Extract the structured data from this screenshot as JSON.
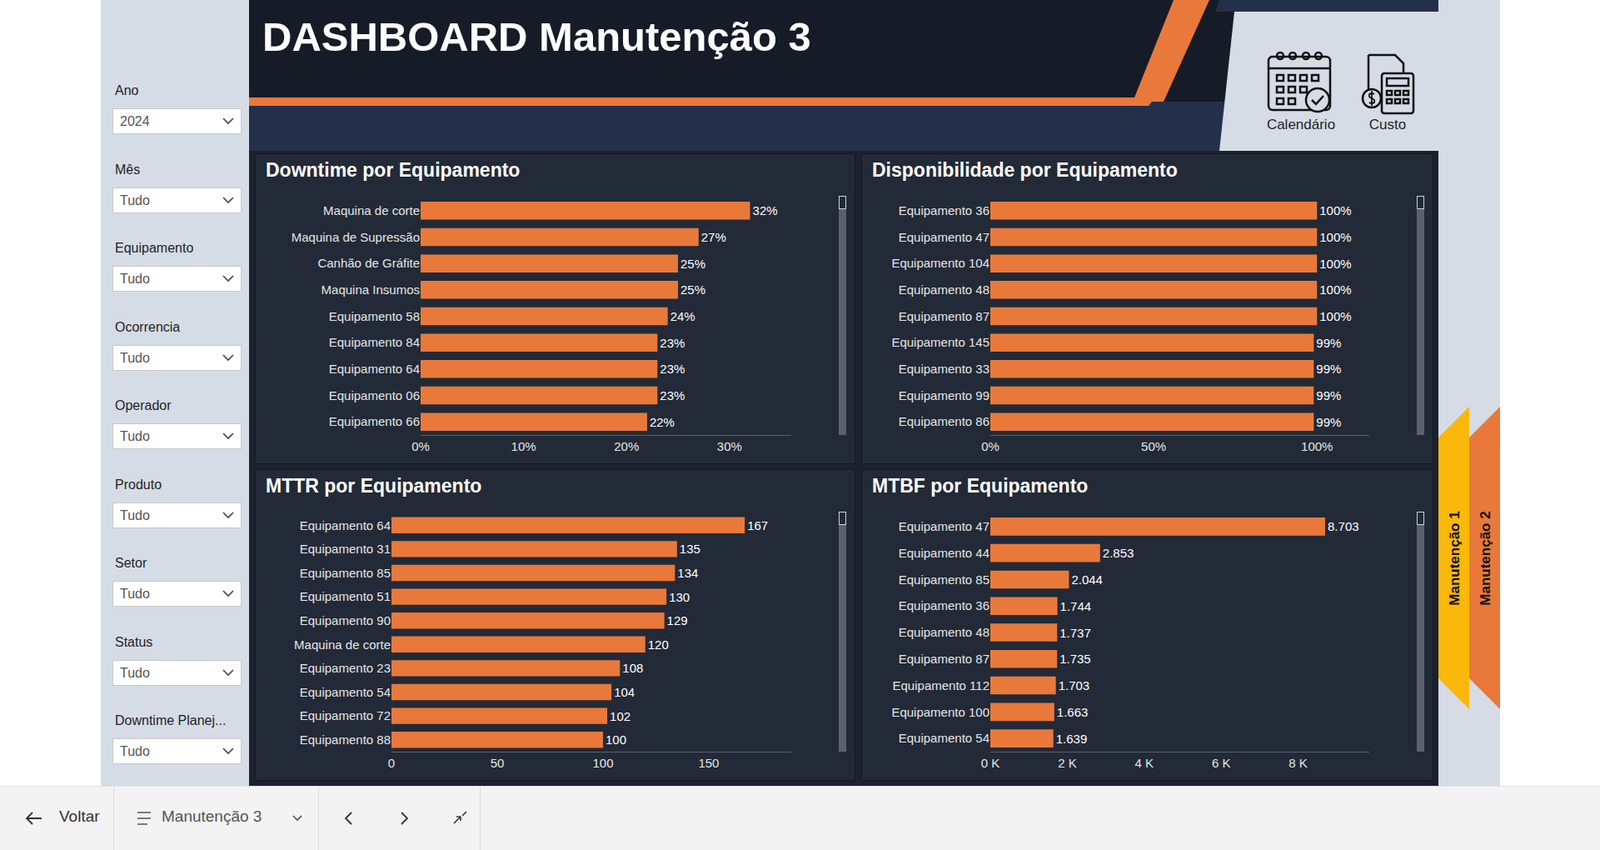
{
  "header": {
    "title": "DASHBOARD Manutenção 3"
  },
  "icons": [
    "Calendário",
    "Custo"
  ],
  "filters": [
    {
      "label": "Ano",
      "value": "2024"
    },
    {
      "label": "Mês",
      "value": "Tudo"
    },
    {
      "label": "Equipamento",
      "value": "Tudo"
    },
    {
      "label": "Ocorrencia",
      "value": "Tudo"
    },
    {
      "label": "Operador",
      "value": "Tudo"
    },
    {
      "label": "Produto",
      "value": "Tudo"
    },
    {
      "label": "Setor",
      "value": "Tudo"
    },
    {
      "label": "Status",
      "value": "Tudo"
    },
    {
      "label": "Downtime Planej...",
      "value": "Tudo"
    }
  ],
  "side_tabs": [
    "Manutenção 1",
    "Manutenção 2"
  ],
  "nav": {
    "back": "Voltar",
    "page": "Manutenção 3"
  },
  "chart_data": [
    {
      "type": "bar",
      "orientation": "horizontal",
      "title": "Downtime por Equipamento",
      "categories": [
        "Maquina de corte",
        "Maquina de Supressão",
        "Canhão de Gráfite",
        "Maquina Insumos",
        "Equipamento 58",
        "Equipamento 84",
        "Equipamento 64",
        "Equipamento 06",
        "Equipamento 66"
      ],
      "values": [
        32,
        27,
        25,
        25,
        24,
        23,
        23,
        23,
        22
      ],
      "value_labels": [
        "32%",
        "27%",
        "25%",
        "25%",
        "24%",
        "23%",
        "23%",
        "23%",
        "22%"
      ],
      "data_labels": true,
      "color": "#e8793a",
      "grid": false,
      "xlim": [
        0,
        36
      ],
      "xticks": [
        {
          "value": 0,
          "label": "0%"
        },
        {
          "value": 10,
          "label": "10%"
        },
        {
          "value": 20,
          "label": "20%"
        },
        {
          "value": 30,
          "label": "30%"
        }
      ]
    },
    {
      "type": "bar",
      "orientation": "horizontal",
      "title": "Disponibilidade por Equipamento",
      "categories": [
        "Equipamento 36",
        "Equipamento 47",
        "Equipamento 104",
        "Equipamento 48",
        "Equipamento 87",
        "Equipamento 145",
        "Equipamento 33",
        "Equipamento 99",
        "Equipamento 86"
      ],
      "values": [
        100,
        100,
        100,
        100,
        100,
        99,
        99,
        99,
        99
      ],
      "value_labels": [
        "100%",
        "100%",
        "100%",
        "100%",
        "100%",
        "99%",
        "99%",
        "99%",
        "99%"
      ],
      "data_labels": true,
      "color": "#e8793a",
      "grid": false,
      "xlim": [
        0,
        116
      ],
      "xticks": [
        {
          "value": 0,
          "label": "0%"
        },
        {
          "value": 50,
          "label": "50%"
        },
        {
          "value": 100,
          "label": "100%"
        }
      ]
    },
    {
      "type": "bar",
      "orientation": "horizontal",
      "title": "MTTR por Equipamento",
      "categories": [
        "Equipamento 64",
        "Equipamento 31",
        "Equipamento 85",
        "Equipamento 51",
        "Equipamento 90",
        "Maquina de corte",
        "Equipamento 23",
        "Equipamento 54",
        "Equipamento 72",
        "Equipamento 88"
      ],
      "values": [
        167,
        135,
        134,
        130,
        129,
        120,
        108,
        104,
        102,
        100
      ],
      "data_labels": true,
      "color": "#e8793a",
      "grid": false,
      "xlim": [
        0,
        189
      ],
      "xticks": [
        0,
        50,
        100,
        150
      ]
    },
    {
      "type": "bar",
      "orientation": "horizontal",
      "title": "MTBF por Equipamento",
      "categories": [
        "Equipamento 47",
        "Equipamento 44",
        "Equipamento 85",
        "Equipamento 36",
        "Equipamento 48",
        "Equipamento 87",
        "Equipamento 112",
        "Equipamento 100",
        "Equipamento 54"
      ],
      "values": [
        8703,
        2853,
        2044,
        1744,
        1737,
        1735,
        1703,
        1663,
        1639
      ],
      "value_labels": [
        "8.703",
        "2.853",
        "2.044",
        "1.744",
        "1.737",
        "1.735",
        "1.703",
        "1.663",
        "1.639"
      ],
      "data_labels": true,
      "color": "#e8793a",
      "grid": false,
      "xlim": [
        0,
        9850
      ],
      "xticks": [
        {
          "value": 0,
          "label": "0 K"
        },
        {
          "value": 2000,
          "label": "2 K"
        },
        {
          "value": 4000,
          "label": "4 K"
        },
        {
          "value": 6000,
          "label": "6 K"
        },
        {
          "value": 8000,
          "label": "8 K"
        }
      ]
    }
  ]
}
